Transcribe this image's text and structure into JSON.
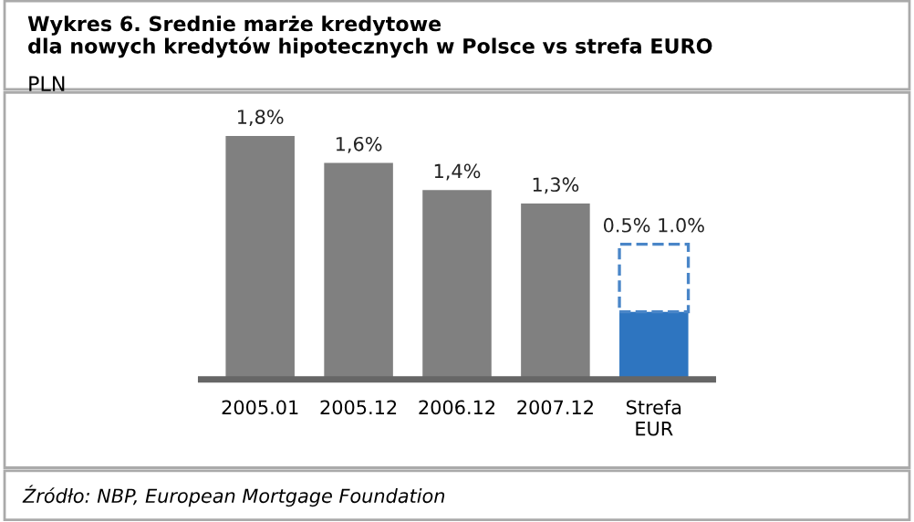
{
  "chart_data": {
    "type": "bar",
    "title": "Wykres 6. Srednie marże kredytowe\ndla nowych kredytów hipotecznych w Polsce vs strefa EURO",
    "subtitle": "PLN",
    "categories": [
      "2005.01",
      "2005.12",
      "2006.12",
      "2007.12",
      "Strefa\nEUR"
    ],
    "stacked": true,
    "grid": false,
    "legend": false,
    "series": [
      {
        "colors": [
          "#808080",
          "#808080",
          "#808080",
          "#808080",
          "#2e75c0"
        ],
        "values": [
          1.8,
          1.6,
          1.4,
          1.3,
          0.5
        ],
        "value_labels": [
          "1,8%",
          "1,6%",
          "1,4%",
          "1,3%",
          null
        ]
      },
      {
        "color": "#4a86c8",
        "line_style": "dashed",
        "values": [
          null,
          null,
          null,
          null,
          0.5
        ],
        "value_labels": [
          null,
          null,
          null,
          null,
          "0.5% 1.0%"
        ]
      }
    ],
    "annotations": [
      "Źródło: NBP, European Mortgage Foundation"
    ]
  }
}
